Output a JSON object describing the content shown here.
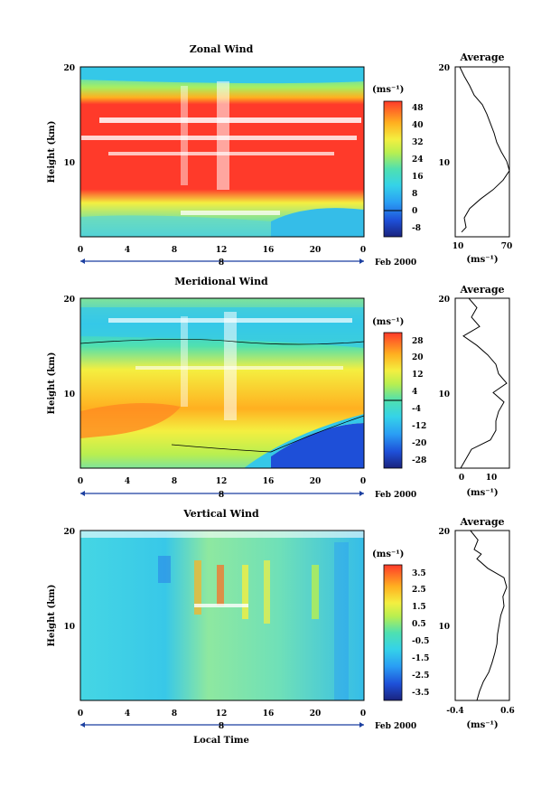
{
  "chart_data": [
    {
      "type": "heatmap",
      "title": "Zonal Wind",
      "ylabel": "Height (km)",
      "unit_label": "(ms⁻¹)",
      "x_ticks": [
        "0",
        "4",
        "8",
        "12",
        "16",
        "20",
        "0"
      ],
      "y_ticks": [
        "20",
        "10"
      ],
      "day_label": "8",
      "date_label": "Feb 2000",
      "xlim": [
        0,
        24
      ],
      "ylim": [
        2,
        20
      ],
      "colorbar_ticks": [
        "48",
        "40",
        "32",
        "24",
        "16",
        "8",
        "0",
        "-8"
      ],
      "colorbar_range": [
        -8,
        52
      ],
      "profile": {
        "title": "Average",
        "xlabel": "(ms⁻¹)",
        "x_ticks": [
          "10",
          "70"
        ],
        "y_ticks": [
          "20",
          "10"
        ],
        "xlim": [
          10,
          70
        ],
        "height": [
          2.5,
          3,
          4,
          5,
          6,
          7,
          8,
          9,
          10,
          11,
          12,
          13,
          14,
          15,
          16,
          17,
          18,
          19,
          20
        ],
        "value": [
          17,
          22,
          20,
          26,
          38,
          52,
          63,
          70,
          67,
          61,
          56,
          53,
          49,
          45,
          40,
          31,
          26,
          20,
          15
        ]
      }
    },
    {
      "type": "heatmap",
      "title": "Meridional Wind",
      "ylabel": "Height (km)",
      "unit_label": "(ms⁻¹)",
      "x_ticks": [
        "0",
        "4",
        "8",
        "12",
        "16",
        "20",
        "0"
      ],
      "y_ticks": [
        "20",
        "10"
      ],
      "day_label": "8",
      "date_label": "Feb 2000",
      "xlim": [
        0,
        24
      ],
      "ylim": [
        2,
        20
      ],
      "colorbar_ticks": [
        "28",
        "20",
        "12",
        "4",
        "-4",
        "-12",
        "-20",
        "-28"
      ],
      "colorbar_range": [
        -32,
        32
      ],
      "profile": {
        "title": "Average",
        "xlabel": "(ms⁻¹)",
        "x_ticks": [
          "0",
          "10"
        ],
        "y_ticks": [
          "20",
          "10"
        ],
        "xlim": [
          -4,
          16
        ],
        "height": [
          2,
          3,
          4,
          5,
          6,
          7,
          8,
          9,
          10,
          11,
          12,
          13,
          14,
          15,
          16,
          17,
          18,
          19,
          20
        ],
        "value": [
          -2,
          0,
          2,
          9,
          11,
          11,
          12,
          14,
          10,
          15,
          12,
          11,
          8,
          4,
          -1,
          5,
          2,
          4,
          1
        ]
      }
    },
    {
      "type": "heatmap",
      "title": "Vertical Wind",
      "ylabel": "Height (km)",
      "xlabel": "Local Time",
      "unit_label": "(ms⁻¹)",
      "x_ticks": [
        "0",
        "4",
        "8",
        "12",
        "16",
        "20",
        "0"
      ],
      "y_ticks": [
        "20",
        "10"
      ],
      "day_label": "8",
      "date_label": "Feb 2000",
      "xlim": [
        0,
        24
      ],
      "ylim": [
        2,
        20
      ],
      "colorbar_ticks": [
        "3.5",
        "2.5",
        "1.5",
        "0.5",
        "-0.5",
        "-1.5",
        "-2.5",
        "-3.5"
      ],
      "colorbar_range": [
        -4,
        4
      ],
      "profile": {
        "title": "Average",
        "xlabel": "(ms⁻¹)",
        "x_ticks": [
          "-0.4",
          "0.6"
        ],
        "y_ticks": [
          "20",
          "10"
        ],
        "xlim": [
          -0.4,
          0.6
        ],
        "height": [
          2,
          3,
          4,
          5,
          6,
          7,
          8,
          9,
          10,
          11,
          12,
          13,
          14,
          15,
          16,
          17,
          17.5,
          18,
          19,
          20
        ],
        "value": [
          0.0,
          0.05,
          0.12,
          0.22,
          0.28,
          0.33,
          0.37,
          0.38,
          0.41,
          0.44,
          0.5,
          0.48,
          0.55,
          0.5,
          0.2,
          0.0,
          0.08,
          -0.05,
          0.02,
          -0.12
        ]
      }
    }
  ]
}
